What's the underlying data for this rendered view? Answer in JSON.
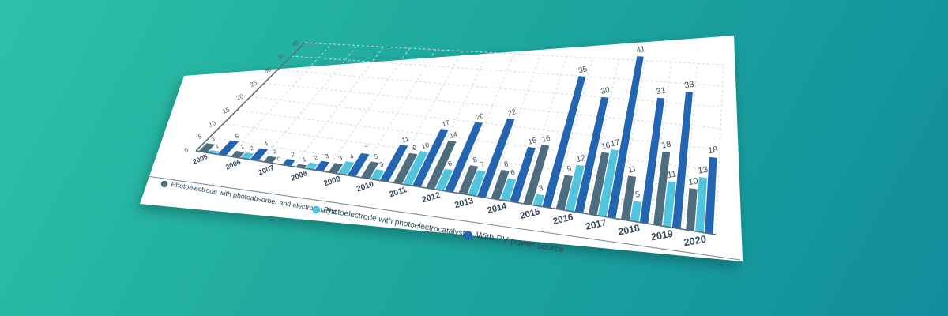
{
  "background": {
    "gradient": [
      "#2ec1a7",
      "#1fab9f",
      "#118d9c"
    ],
    "sheet_color": "#ffffff"
  },
  "chart_data": {
    "type": "bar",
    "title": "",
    "xlabel": "",
    "ylabel": "",
    "categories": [
      "2005",
      "2006",
      "2007",
      "2008",
      "2009",
      "2010",
      "2011",
      "2012",
      "2013",
      "2014",
      "2015",
      "2016",
      "2017",
      "2018",
      "2019",
      "2020"
    ],
    "series": [
      {
        "name": "Photoelectrode with photoabsorber and electrocatalyst",
        "color": "#4e6d7e",
        "values": [
          3,
          2,
          2,
          1,
          3,
          5,
          9,
          14,
          8,
          8,
          16,
          9,
          16,
          11,
          18,
          10
        ]
      },
      {
        "name": "Photoelectrode with photoelectrocatalyst",
        "color": "#52c4de",
        "values": [
          1,
          2,
          0,
          2,
          4,
          3,
          10,
          6,
          7,
          6,
          3,
          12,
          17,
          5,
          11,
          13
        ]
      },
      {
        "name": "With PV power source",
        "color": "#2365b0",
        "values": [
          5,
          4,
          2,
          3,
          7,
          11,
          17,
          20,
          22,
          15,
          35,
          30,
          41,
          31,
          33,
          18
        ]
      }
    ],
    "ylim": [
      0,
      40
    ],
    "ytick_step": 5,
    "yticks": [
      0,
      5,
      10,
      15,
      20,
      25,
      30,
      35,
      40
    ],
    "grid": true,
    "legend_position": "bottom"
  }
}
